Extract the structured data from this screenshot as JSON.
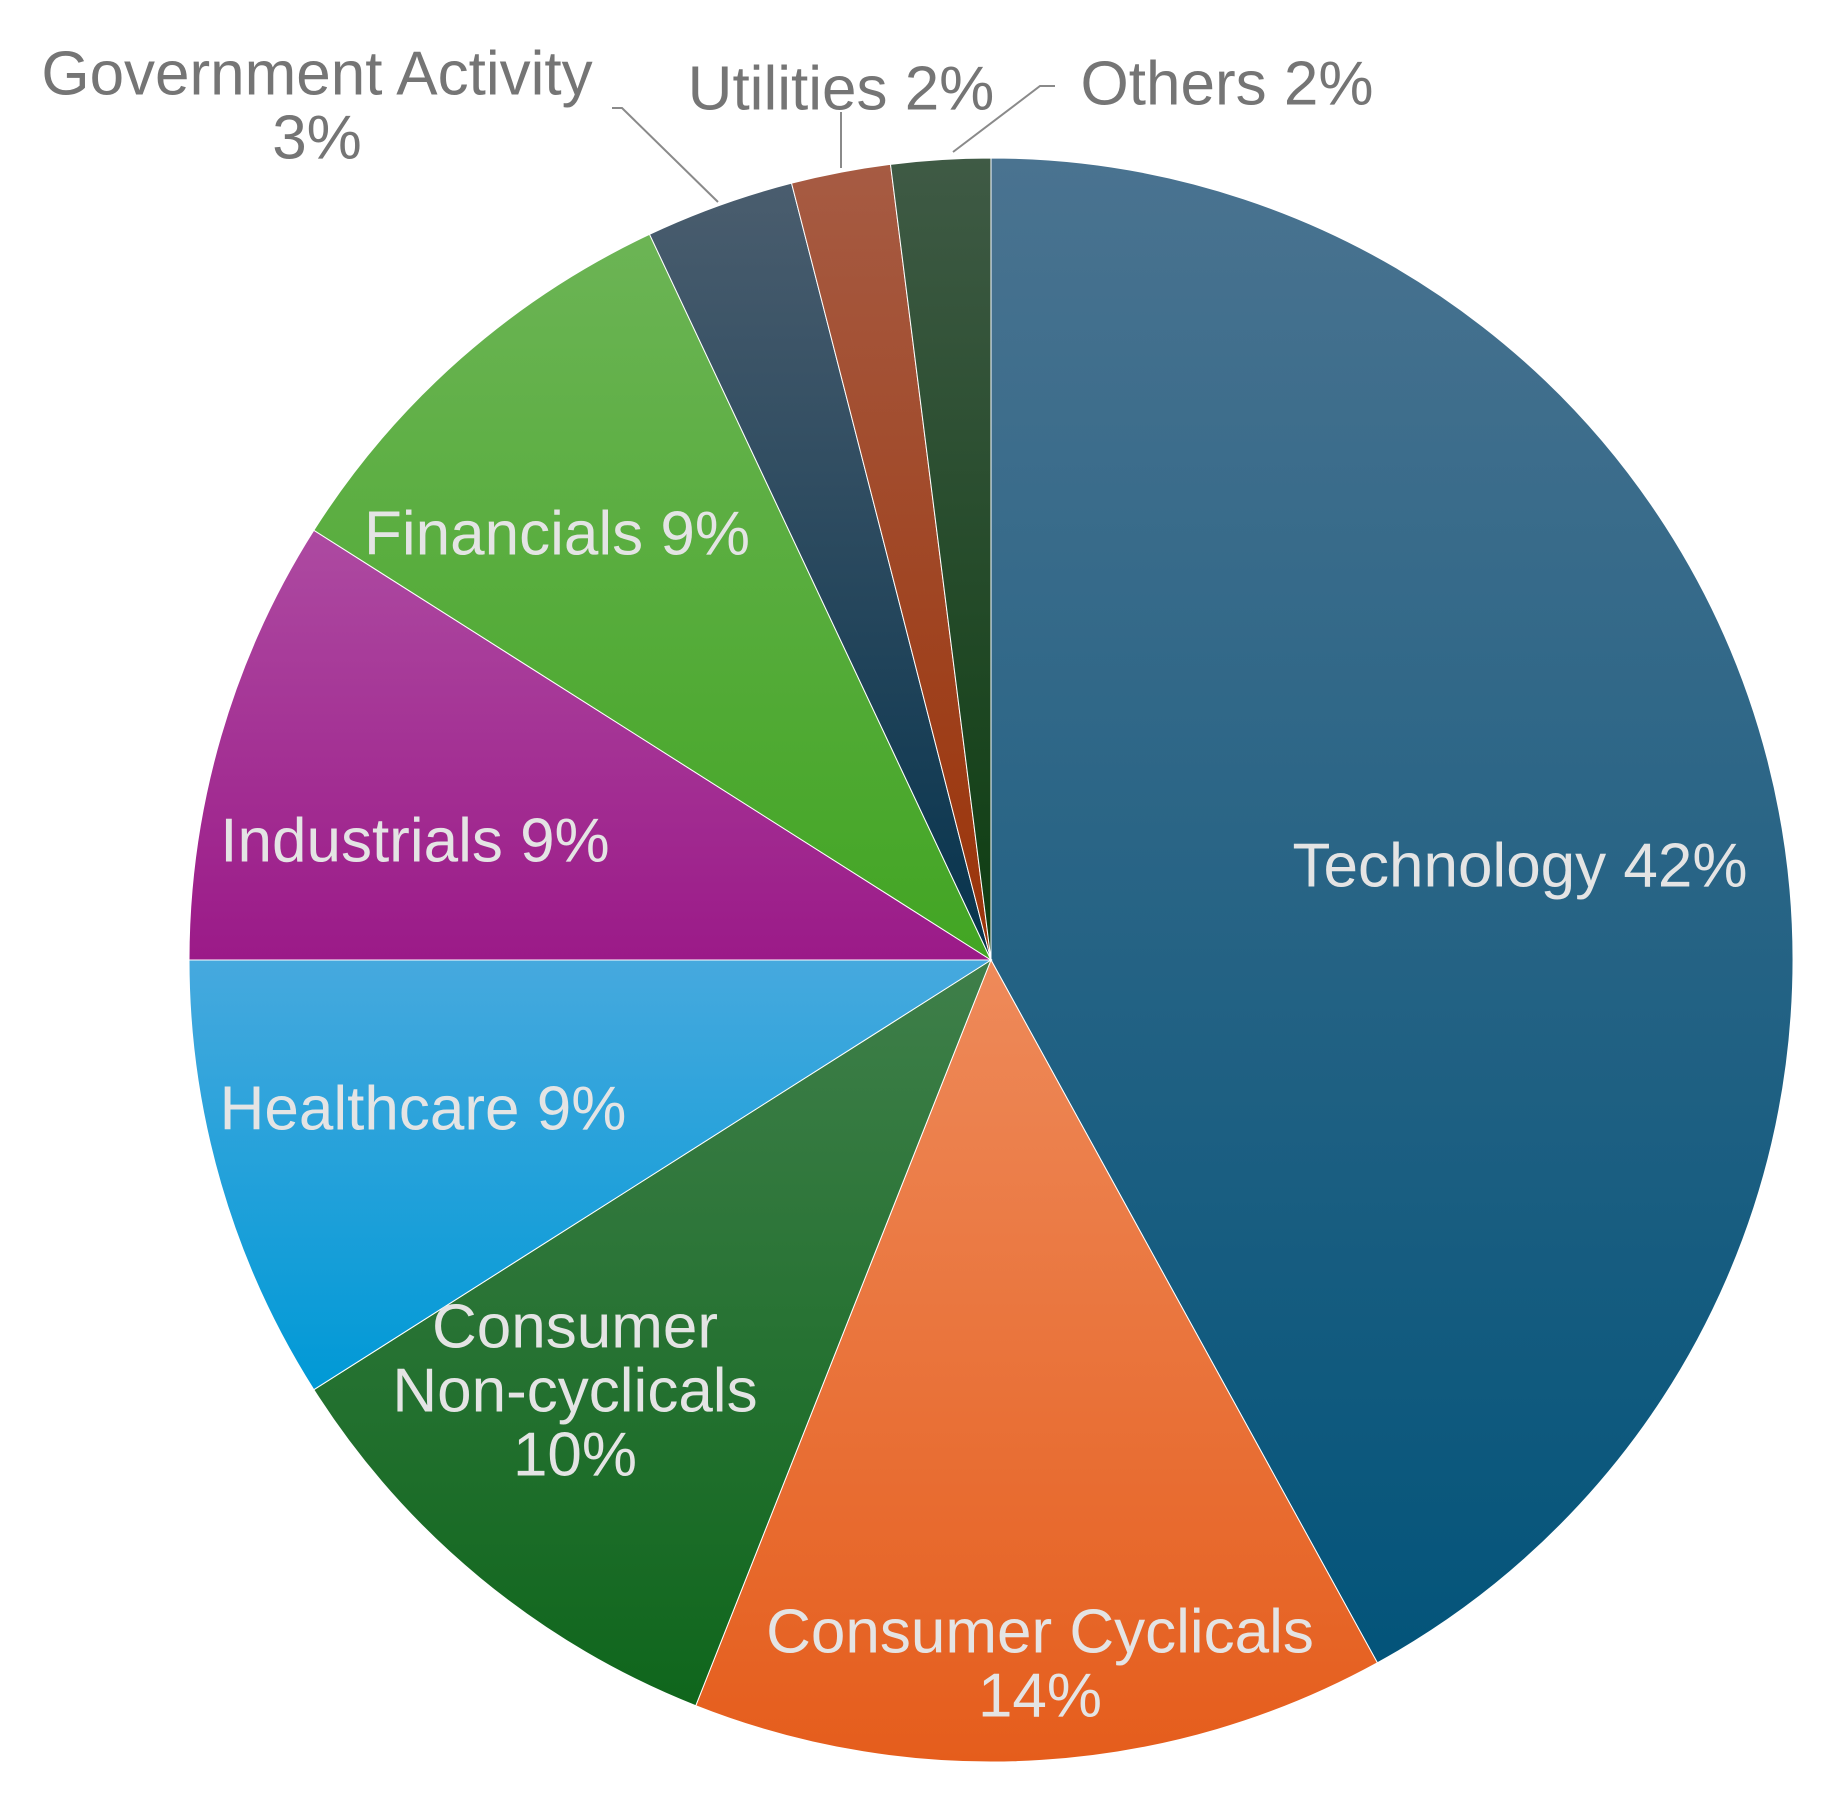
{
  "chart_data": {
    "type": "pie",
    "start_angle_deg": 0,
    "direction": "clockwise",
    "slices": [
      {
        "category": "Technology",
        "value": 42,
        "label": "Technology 42%",
        "label_lines": [
          "Technology 42%"
        ],
        "color_top": "#4a7390",
        "color_bottom": "#03547a",
        "label_position": "inside"
      },
      {
        "category": "Consumer Cyclicals",
        "value": 14,
        "label": "Consumer Cyclicals 14%",
        "label_lines": [
          "Consumer Cyclicals",
          "14%"
        ],
        "color_top": "#ee8a5a",
        "color_bottom": "#e55d1c",
        "label_position": "inside"
      },
      {
        "category": "Consumer Non-cyclicals",
        "value": 10,
        "label": "Consumer Non-cyclicals 10%",
        "label_lines": [
          "Consumer",
          "Non-cyclicals",
          "10%"
        ],
        "color_top": "#3f7f4a",
        "color_bottom": "#0f661c",
        "label_position": "inside"
      },
      {
        "category": "Healthcare",
        "value": 9,
        "label": "Healthcare 9%",
        "label_lines": [
          "Healthcare 9%"
        ],
        "color_top": "#46a9de",
        "color_bottom": "#0099d6",
        "label_position": "inside"
      },
      {
        "category": "Industrials",
        "value": 9,
        "label": "Industrials 9%",
        "label_lines": [
          "Industrials 9%"
        ],
        "color_top": "#ad4aa1",
        "color_bottom": "#9b1a88",
        "label_position": "inside"
      },
      {
        "category": "Financials",
        "value": 9,
        "label": "Financials 9%",
        "label_lines": [
          "Financials 9%"
        ],
        "color_top": "#6cb455",
        "color_bottom": "#42a523",
        "label_position": "inside"
      },
      {
        "category": "Government Activity",
        "value": 3,
        "label": "Government Activity 3%",
        "label_lines": [
          "Government Activity",
          "3%"
        ],
        "color_top": "#4a5d6e",
        "color_bottom": "#06334d",
        "label_position": "outside"
      },
      {
        "category": "Utilities",
        "value": 2,
        "label": "Utilities 2%",
        "label_lines": [
          "Utilities 2%"
        ],
        "color_top": "#a65b43",
        "color_bottom": "#9b3308",
        "label_position": "outside"
      },
      {
        "category": "Others",
        "value": 2,
        "label": "Others 2%",
        "label_lines": [
          "Others 2%"
        ],
        "color_top": "#3f5a45",
        "color_bottom": "#0d3d11",
        "label_position": "outside"
      }
    ],
    "title": "",
    "legend": "none",
    "label_colors": {
      "inside": "#e4e4e4",
      "outside": "#757575"
    }
  }
}
